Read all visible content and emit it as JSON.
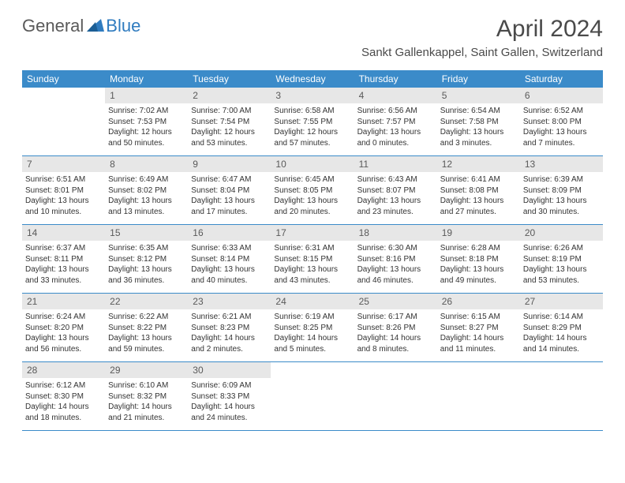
{
  "logo": {
    "general": "General",
    "blue": "Blue"
  },
  "title": "April 2024",
  "location": "Sankt Gallenkappel, Saint Gallen, Switzerland",
  "day_names": [
    "Sunday",
    "Monday",
    "Tuesday",
    "Wednesday",
    "Thursday",
    "Friday",
    "Saturday"
  ],
  "colors": {
    "header_bg": "#3b8bc9",
    "daynum_bg": "#e7e7e7",
    "text": "#333333",
    "logo_gray": "#5a5a5a",
    "logo_blue": "#2f7bbf"
  },
  "weeks": [
    [
      {
        "n": "",
        "sr": "",
        "ss": "",
        "dl": ""
      },
      {
        "n": "1",
        "sr": "Sunrise: 7:02 AM",
        "ss": "Sunset: 7:53 PM",
        "dl": "Daylight: 12 hours and 50 minutes."
      },
      {
        "n": "2",
        "sr": "Sunrise: 7:00 AM",
        "ss": "Sunset: 7:54 PM",
        "dl": "Daylight: 12 hours and 53 minutes."
      },
      {
        "n": "3",
        "sr": "Sunrise: 6:58 AM",
        "ss": "Sunset: 7:55 PM",
        "dl": "Daylight: 12 hours and 57 minutes."
      },
      {
        "n": "4",
        "sr": "Sunrise: 6:56 AM",
        "ss": "Sunset: 7:57 PM",
        "dl": "Daylight: 13 hours and 0 minutes."
      },
      {
        "n": "5",
        "sr": "Sunrise: 6:54 AM",
        "ss": "Sunset: 7:58 PM",
        "dl": "Daylight: 13 hours and 3 minutes."
      },
      {
        "n": "6",
        "sr": "Sunrise: 6:52 AM",
        "ss": "Sunset: 8:00 PM",
        "dl": "Daylight: 13 hours and 7 minutes."
      }
    ],
    [
      {
        "n": "7",
        "sr": "Sunrise: 6:51 AM",
        "ss": "Sunset: 8:01 PM",
        "dl": "Daylight: 13 hours and 10 minutes."
      },
      {
        "n": "8",
        "sr": "Sunrise: 6:49 AM",
        "ss": "Sunset: 8:02 PM",
        "dl": "Daylight: 13 hours and 13 minutes."
      },
      {
        "n": "9",
        "sr": "Sunrise: 6:47 AM",
        "ss": "Sunset: 8:04 PM",
        "dl": "Daylight: 13 hours and 17 minutes."
      },
      {
        "n": "10",
        "sr": "Sunrise: 6:45 AM",
        "ss": "Sunset: 8:05 PM",
        "dl": "Daylight: 13 hours and 20 minutes."
      },
      {
        "n": "11",
        "sr": "Sunrise: 6:43 AM",
        "ss": "Sunset: 8:07 PM",
        "dl": "Daylight: 13 hours and 23 minutes."
      },
      {
        "n": "12",
        "sr": "Sunrise: 6:41 AM",
        "ss": "Sunset: 8:08 PM",
        "dl": "Daylight: 13 hours and 27 minutes."
      },
      {
        "n": "13",
        "sr": "Sunrise: 6:39 AM",
        "ss": "Sunset: 8:09 PM",
        "dl": "Daylight: 13 hours and 30 minutes."
      }
    ],
    [
      {
        "n": "14",
        "sr": "Sunrise: 6:37 AM",
        "ss": "Sunset: 8:11 PM",
        "dl": "Daylight: 13 hours and 33 minutes."
      },
      {
        "n": "15",
        "sr": "Sunrise: 6:35 AM",
        "ss": "Sunset: 8:12 PM",
        "dl": "Daylight: 13 hours and 36 minutes."
      },
      {
        "n": "16",
        "sr": "Sunrise: 6:33 AM",
        "ss": "Sunset: 8:14 PM",
        "dl": "Daylight: 13 hours and 40 minutes."
      },
      {
        "n": "17",
        "sr": "Sunrise: 6:31 AM",
        "ss": "Sunset: 8:15 PM",
        "dl": "Daylight: 13 hours and 43 minutes."
      },
      {
        "n": "18",
        "sr": "Sunrise: 6:30 AM",
        "ss": "Sunset: 8:16 PM",
        "dl": "Daylight: 13 hours and 46 minutes."
      },
      {
        "n": "19",
        "sr": "Sunrise: 6:28 AM",
        "ss": "Sunset: 8:18 PM",
        "dl": "Daylight: 13 hours and 49 minutes."
      },
      {
        "n": "20",
        "sr": "Sunrise: 6:26 AM",
        "ss": "Sunset: 8:19 PM",
        "dl": "Daylight: 13 hours and 53 minutes."
      }
    ],
    [
      {
        "n": "21",
        "sr": "Sunrise: 6:24 AM",
        "ss": "Sunset: 8:20 PM",
        "dl": "Daylight: 13 hours and 56 minutes."
      },
      {
        "n": "22",
        "sr": "Sunrise: 6:22 AM",
        "ss": "Sunset: 8:22 PM",
        "dl": "Daylight: 13 hours and 59 minutes."
      },
      {
        "n": "23",
        "sr": "Sunrise: 6:21 AM",
        "ss": "Sunset: 8:23 PM",
        "dl": "Daylight: 14 hours and 2 minutes."
      },
      {
        "n": "24",
        "sr": "Sunrise: 6:19 AM",
        "ss": "Sunset: 8:25 PM",
        "dl": "Daylight: 14 hours and 5 minutes."
      },
      {
        "n": "25",
        "sr": "Sunrise: 6:17 AM",
        "ss": "Sunset: 8:26 PM",
        "dl": "Daylight: 14 hours and 8 minutes."
      },
      {
        "n": "26",
        "sr": "Sunrise: 6:15 AM",
        "ss": "Sunset: 8:27 PM",
        "dl": "Daylight: 14 hours and 11 minutes."
      },
      {
        "n": "27",
        "sr": "Sunrise: 6:14 AM",
        "ss": "Sunset: 8:29 PM",
        "dl": "Daylight: 14 hours and 14 minutes."
      }
    ],
    [
      {
        "n": "28",
        "sr": "Sunrise: 6:12 AM",
        "ss": "Sunset: 8:30 PM",
        "dl": "Daylight: 14 hours and 18 minutes."
      },
      {
        "n": "29",
        "sr": "Sunrise: 6:10 AM",
        "ss": "Sunset: 8:32 PM",
        "dl": "Daylight: 14 hours and 21 minutes."
      },
      {
        "n": "30",
        "sr": "Sunrise: 6:09 AM",
        "ss": "Sunset: 8:33 PM",
        "dl": "Daylight: 14 hours and 24 minutes."
      },
      {
        "n": "",
        "sr": "",
        "ss": "",
        "dl": ""
      },
      {
        "n": "",
        "sr": "",
        "ss": "",
        "dl": ""
      },
      {
        "n": "",
        "sr": "",
        "ss": "",
        "dl": ""
      },
      {
        "n": "",
        "sr": "",
        "ss": "",
        "dl": ""
      }
    ]
  ]
}
